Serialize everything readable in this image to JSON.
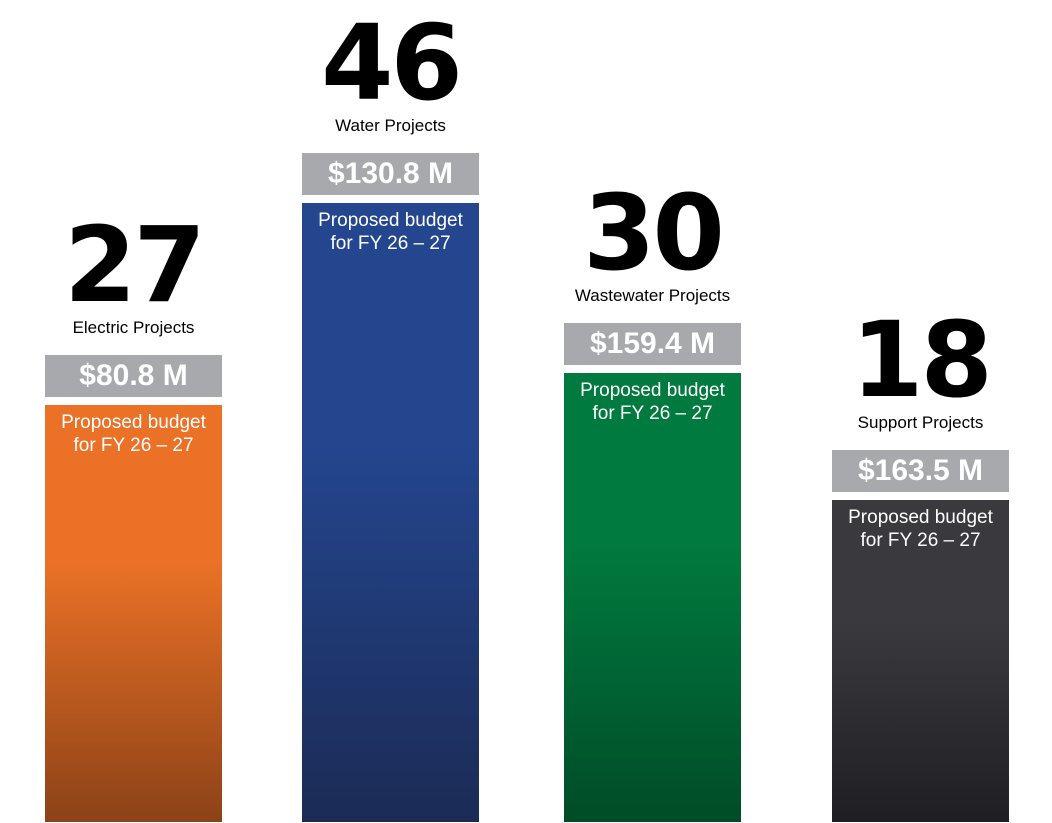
{
  "chart_data": {
    "type": "bar",
    "title": "",
    "xlabel": "",
    "ylabel": "",
    "categories": [
      "Electric Projects",
      "Water Projects",
      "Wastewater Projects",
      "Support Projects"
    ],
    "values": [
      27,
      46,
      30,
      18
    ],
    "series": [
      {
        "values": [
          27,
          46,
          30,
          18
        ],
        "budgets": [
          "$80.8 M",
          "$130.8 M",
          "$159.4 M",
          "$163.5 M"
        ],
        "bar_label_line1": "Proposed budget",
        "bar_label_line2": "for FY 26 – 27"
      }
    ],
    "ylim": [
      0,
      46
    ],
    "grid": false,
    "legend": "none",
    "colors": [
      {
        "top": "#ea7126",
        "bottom": "#8c4218"
      },
      {
        "top": "#24468f",
        "bottom": "#1b2b55"
      },
      {
        "top": "#007a3e",
        "bottom": "#004c27"
      },
      {
        "top": "#3a393e",
        "bottom": "#1f1f23"
      }
    ],
    "budget_box_color": "#a7a9ac"
  }
}
